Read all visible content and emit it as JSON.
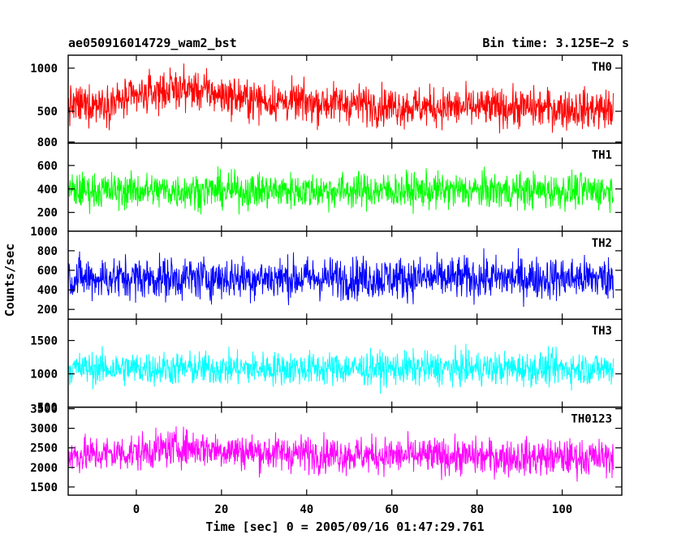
{
  "header": {
    "title": "ae050916014729_wam2_bst",
    "bin_time": "Bin time: 3.125E−2 s"
  },
  "chart_data": {
    "type": "line",
    "xlabel": "Time [sec] 0 = 2005/09/16 01:47:29.761",
    "ylabel": "Counts/sec",
    "xlim": [
      -16,
      114
    ],
    "xticks": [
      0,
      20,
      40,
      60,
      80,
      100
    ],
    "xtick_labels": [
      "0",
      "20",
      "40",
      "60",
      "80",
      "100"
    ],
    "data_x_range": [
      -16,
      112
    ],
    "panels": [
      {
        "name": "TH0",
        "color": "#ff0000",
        "ylim": [
          130,
          1150
        ],
        "yticks": [
          1000,
          500
        ],
        "ytick_labels": [
          "1000",
          "500"
        ],
        "mean": [
          [
            -16,
            560
          ],
          [
            -10,
            590
          ],
          [
            -5,
            610
          ],
          [
            0,
            660
          ],
          [
            5,
            730
          ],
          [
            10,
            760
          ],
          [
            15,
            740
          ],
          [
            20,
            690
          ],
          [
            25,
            650
          ],
          [
            30,
            620
          ],
          [
            40,
            600
          ],
          [
            50,
            590
          ],
          [
            60,
            560
          ],
          [
            70,
            550
          ],
          [
            80,
            540
          ],
          [
            90,
            540
          ],
          [
            100,
            530
          ],
          [
            112,
            520
          ]
        ],
        "spread": 210
      },
      {
        "name": "TH1",
        "color": "#00ff00",
        "ylim": [
          40,
          790
        ],
        "yticks": [
          800,
          600,
          400,
          200
        ],
        "ytick_labels": [
          "800",
          "600",
          "400",
          "200"
        ],
        "mean": [
          [
            -16,
            385
          ],
          [
            112,
            385
          ]
        ],
        "spread": 140
      },
      {
        "name": "TH2",
        "color": "#0000ff",
        "ylim": [
          100,
          1000
        ],
        "yticks": [
          1000,
          800,
          600,
          400,
          200
        ],
        "ytick_labels": [
          "1000",
          "800",
          "600",
          "400",
          "200"
        ],
        "mean": [
          [
            -16,
            520
          ],
          [
            112,
            520
          ]
        ],
        "spread": 200
      },
      {
        "name": "TH3",
        "color": "#00ffff",
        "ylim": [
          500,
          1820
        ],
        "yticks": [
          1500,
          1000,
          500
        ],
        "ytick_labels": [
          "1500",
          "1000",
          "500"
        ],
        "mean": [
          [
            -16,
            1080
          ],
          [
            112,
            1080
          ]
        ],
        "spread": 230
      },
      {
        "name": "TH0123",
        "color": "#ff00ff",
        "ylim": [
          1290,
          3540
        ],
        "yticks": [
          3500,
          3000,
          2500,
          2000,
          1500
        ],
        "ytick_labels": [
          "3500",
          "3000",
          "2500",
          "2000",
          "1500"
        ],
        "mean": [
          [
            -16,
            2300
          ],
          [
            0,
            2380
          ],
          [
            5,
            2450
          ],
          [
            10,
            2520
          ],
          [
            15,
            2500
          ],
          [
            20,
            2440
          ],
          [
            30,
            2380
          ],
          [
            40,
            2350
          ],
          [
            60,
            2300
          ],
          [
            80,
            2270
          ],
          [
            100,
            2250
          ],
          [
            112,
            2240
          ]
        ],
        "spread": 430
      }
    ],
    "grid": false,
    "legend": "none"
  }
}
